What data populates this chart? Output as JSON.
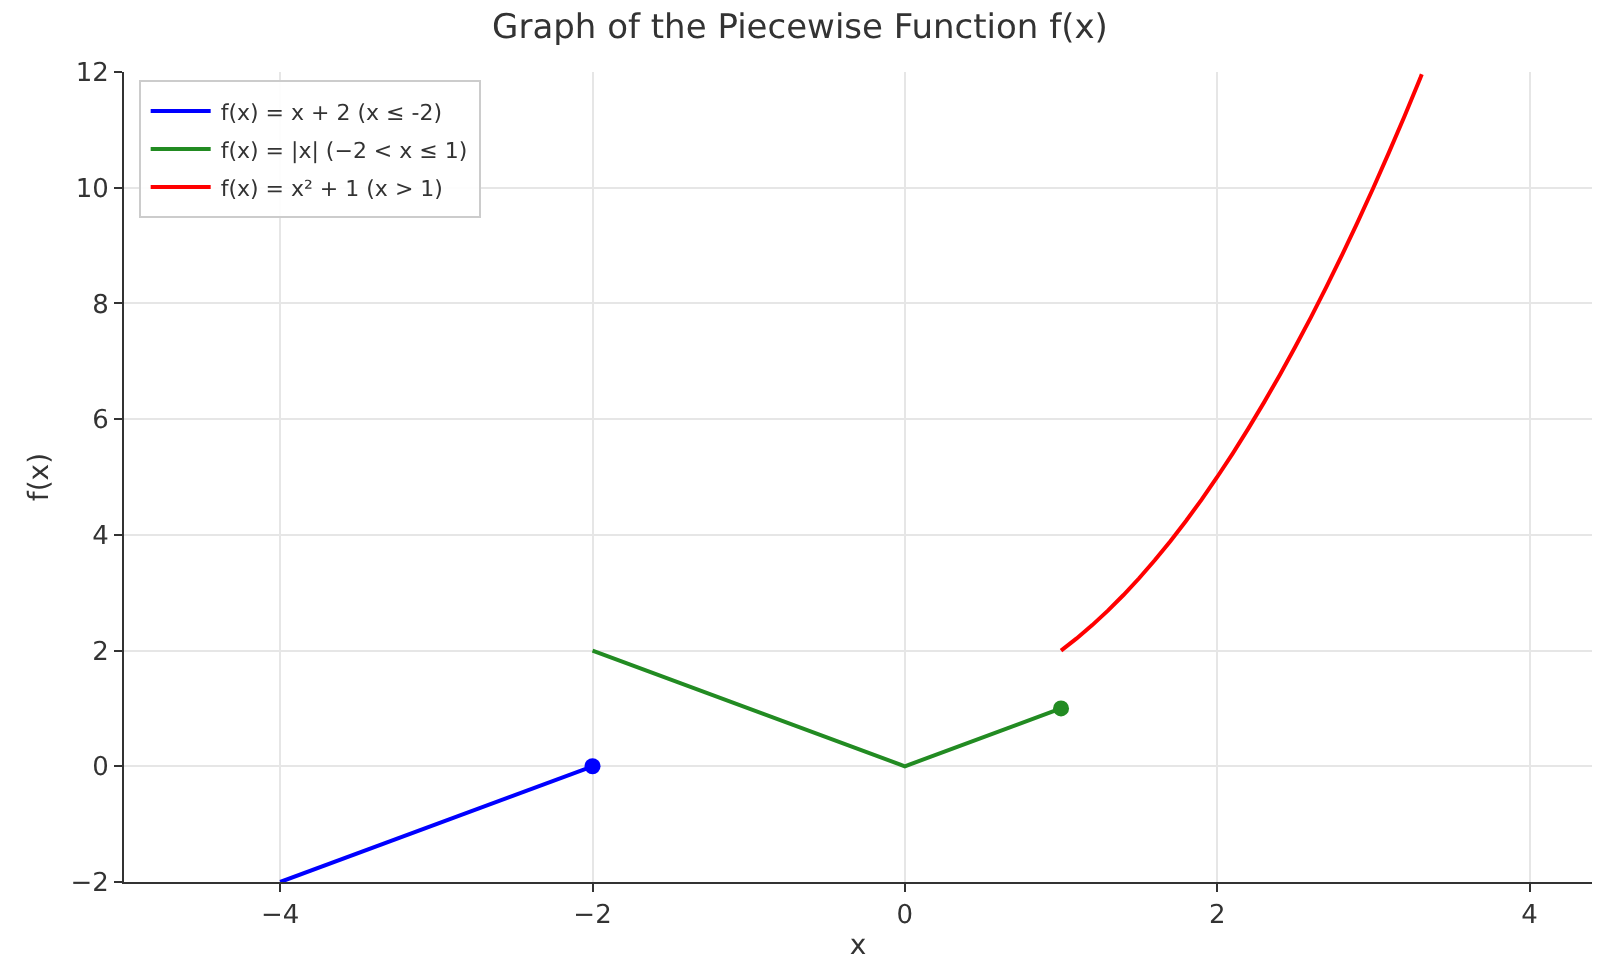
{
  "chart_data": {
    "type": "line",
    "title": "Graph of the Piecewise Function f(x)",
    "xlabel": "x",
    "ylabel": "f(x)",
    "xlim": [
      -5,
      4.4
    ],
    "ylim": [
      -2,
      12
    ],
    "xticks": [
      {
        "value": -4,
        "label": "−4"
      },
      {
        "value": -2,
        "label": "−2"
      },
      0,
      2,
      4
    ],
    "yticks": [
      {
        "value": -2,
        "label": "−2"
      },
      0,
      2,
      4,
      6,
      8,
      10,
      12
    ],
    "grid": true,
    "legend": "top left",
    "line_style": "solid",
    "series": [
      {
        "name": "f(x) = x + 2 (x ≤ -2)",
        "color": "#0000ff",
        "marker": "none",
        "x": [
          -4,
          -2
        ],
        "values": [
          -2,
          0
        ]
      },
      {
        "name": "f(x) = |x| (−2 < x ≤ 1)",
        "color": "#228b22",
        "marker": "none",
        "x": [
          -2,
          0,
          1
        ],
        "values": [
          2,
          0,
          1
        ]
      },
      {
        "name": "f(x) = x² + 1 (x > 1)",
        "color": "#ff0000",
        "marker": "none",
        "x": [
          1,
          1.1,
          1.2,
          1.3,
          1.4,
          1.5,
          1.6,
          1.7,
          1.8,
          1.9,
          2,
          2.1,
          2.2,
          2.3,
          2.4,
          2.5,
          2.6,
          2.7,
          2.8,
          2.9,
          3,
          3.1,
          3.2,
          3.3,
          3.31
        ],
        "values": [
          2,
          2.21,
          2.44,
          2.69,
          2.96,
          3.25,
          3.56,
          3.89,
          4.24,
          4.61,
          5,
          5.41,
          5.84,
          6.29,
          6.76,
          7.25,
          7.76,
          8.29,
          8.84,
          9.41,
          10,
          10.61,
          11.24,
          11.89,
          11.96
        ]
      },
      {
        "color": "#0000ff",
        "type": "scatter",
        "marker": "circle",
        "x": [
          -2
        ],
        "values": [
          0
        ]
      },
      {
        "color": "#228b22",
        "type": "scatter",
        "marker": "circle",
        "x": [
          1
        ],
        "values": [
          1
        ]
      }
    ]
  }
}
